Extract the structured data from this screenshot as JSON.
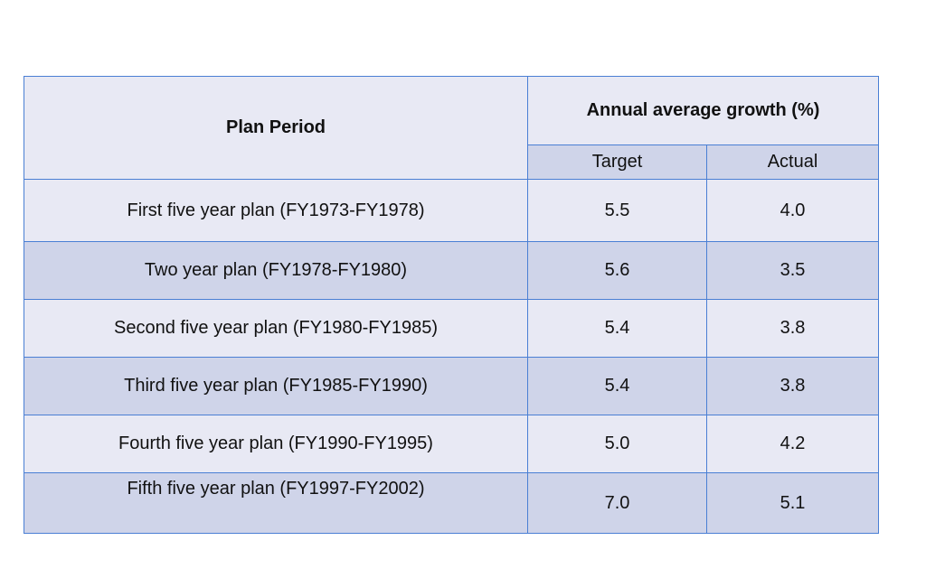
{
  "table": {
    "header": {
      "plan_period": "Plan Period",
      "growth_group": "Annual average growth (%)",
      "target": "Target",
      "actual": "Actual"
    },
    "rows": [
      {
        "plan": "First five year plan (FY1973-FY1978)",
        "target": "5.5",
        "actual": "4.0"
      },
      {
        "plan": "Two year plan (FY1978-FY1980)",
        "target": "5.6",
        "actual": "3.5"
      },
      {
        "plan": "Second five year plan (FY1980-FY1985)",
        "target": "5.4",
        "actual": "3.8"
      },
      {
        "plan": "Third five year plan (FY1985-FY1990)",
        "target": "5.4",
        "actual": "3.8"
      },
      {
        "plan": "Fourth five year plan (FY1990-FY1995)",
        "target": "5.0",
        "actual": "4.2"
      },
      {
        "plan": "Fifth five year plan (FY1997-FY2002)",
        "target": "7.0",
        "actual": "5.1"
      }
    ]
  },
  "colors": {
    "border": "#4a7fd4",
    "light_row": "#e8e9f4",
    "dark_row": "#cfd4e9"
  }
}
